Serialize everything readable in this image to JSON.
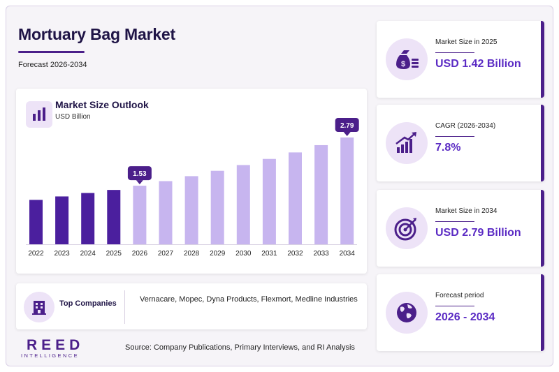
{
  "header": {
    "title": "Mortuary Bag Market",
    "subtitle": "Forecast 2026-2034"
  },
  "chart_card": {
    "title": "Market Size Outlook",
    "unit": "USD Billion",
    "icon": "bar-chart-icon"
  },
  "chart_data": {
    "type": "bar",
    "title": "Market Size Outlook",
    "ylabel": "USD Billion",
    "categories": [
      "2022",
      "2023",
      "2024",
      "2025",
      "2026",
      "2027",
      "2028",
      "2029",
      "2030",
      "2031",
      "2032",
      "2033",
      "2034"
    ],
    "values": [
      1.16,
      1.25,
      1.34,
      1.42,
      1.53,
      1.65,
      1.78,
      1.92,
      2.07,
      2.23,
      2.4,
      2.59,
      2.79
    ],
    "highlighted": [
      {
        "category": "2026",
        "label": "1.53"
      },
      {
        "category": "2034",
        "label": "2.79"
      }
    ],
    "ylim": [
      0,
      2.79
    ],
    "grid": false,
    "colors": {
      "historical": "#4b1f9e",
      "forecast": "#c7b5ef",
      "callout": "#4b1f8a"
    }
  },
  "companies": {
    "label": "Top Companies",
    "list": "Vernacare, Mopec, Dyna Products, Flexmort, Medline Industries",
    "icon": "building-icon"
  },
  "stats": [
    {
      "label": "Market Size in 2025",
      "value": "USD 1.42 Billion",
      "icon": "money-bag-icon"
    },
    {
      "label": "CAGR (2026-2034)",
      "value": "7.8%",
      "icon": "growth-chart-icon"
    },
    {
      "label": "Market Size in 2034",
      "value": "USD 2.79 Billion",
      "icon": "target-icon"
    },
    {
      "label": "Forecast period",
      "value": "2026 - 2034",
      "icon": "globe-icon"
    }
  ],
  "footer": {
    "logo_main": "REED",
    "logo_sub": "INTELLIGENCE",
    "source": "Source: Company Publications, Primary Interviews, and RI Analysis"
  },
  "colors": {
    "accent": "#4b1f8a",
    "value_text": "#5b2bc4",
    "title_text": "#1f1446",
    "icon_bg": "#ede3f7"
  }
}
